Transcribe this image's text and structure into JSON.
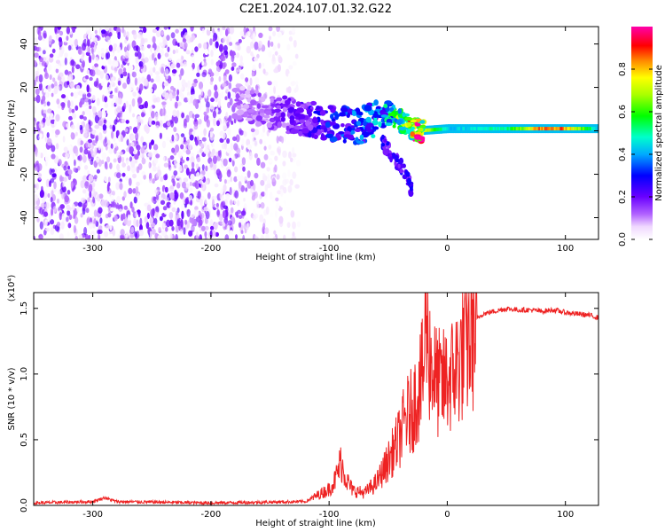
{
  "title": "C2E1.2024.107.01.32.G22",
  "chart_data": [
    {
      "type": "heatmap",
      "title": "C2E1.2024.107.01.32.G22",
      "xlabel": "Height of straight line (km)",
      "ylabel": "Frequency (Hz)",
      "xlim": [
        -350,
        128
      ],
      "ylim": [
        -50,
        48
      ],
      "x_ticks": [
        -300,
        -200,
        -100,
        0,
        100
      ],
      "y_ticks": [
        -40,
        -20,
        0,
        20,
        40
      ],
      "x_tick_labels": [
        "-300",
        "-200",
        "-100",
        "0",
        "100"
      ],
      "y_tick_labels": [
        "-40",
        "-20",
        "0",
        "20",
        "40"
      ],
      "colorbar": {
        "label": "Normalized spectral amplitude",
        "range": [
          0,
          1
        ],
        "ticks": [
          0.0,
          0.2,
          0.4,
          0.6,
          0.8
        ],
        "tick_labels": [
          "0.0",
          "0.2",
          "0.4",
          "0.6",
          "0.8"
        ],
        "colormap": "rainbow (white-purple-blue-cyan-green-yellow-red-magenta)"
      },
      "description_points": {
        "noise_region_x": [
          -350,
          -125
        ],
        "noise_region_freq": [
          -50,
          48
        ],
        "noise_amplitude": 0.15,
        "signal_track": [
          {
            "x": -175,
            "freq": 13,
            "amp": 0.12
          },
          {
            "x": -150,
            "freq": 9,
            "amp": 0.15
          },
          {
            "x": -125,
            "freq": 6,
            "amp": 0.2
          },
          {
            "x": -100,
            "freq": 4,
            "amp": 0.3
          },
          {
            "x": -75,
            "freq": 2,
            "amp": 0.35
          },
          {
            "x": -50,
            "freq": 8,
            "amp": 0.45
          },
          {
            "x": -25,
            "freq": 0,
            "amp": 0.9
          },
          {
            "x": 0,
            "freq": 1,
            "amp": 0.45
          },
          {
            "x": 50,
            "freq": 1,
            "amp": 0.55
          },
          {
            "x": 75,
            "freq": 1,
            "amp": 0.9
          },
          {
            "x": 100,
            "freq": 1,
            "amp": 0.9
          },
          {
            "x": 128,
            "freq": 1,
            "amp": 0.45
          }
        ],
        "falloff_track": [
          {
            "x": -55,
            "freq": -5
          },
          {
            "x": -45,
            "freq": -12
          },
          {
            "x": -35,
            "freq": -20
          },
          {
            "x": -30,
            "freq": -27
          }
        ]
      }
    },
    {
      "type": "line",
      "xlabel": "Height of straight line (km)",
      "ylabel": "SNR (10 * v/v)",
      "y_scale_label": "(x10⁴)",
      "xlim": [
        -350,
        128
      ],
      "ylim": [
        0,
        1.62
      ],
      "x_ticks": [
        -300,
        -200,
        -100,
        0,
        100
      ],
      "y_ticks": [
        0.0,
        0.5,
        1.0,
        1.5
      ],
      "x_tick_labels": [
        "-300",
        "-200",
        "-100",
        "0",
        "100"
      ],
      "y_tick_labels": [
        "0.0",
        "0.5",
        "1.0",
        "1.5"
      ],
      "series": [
        {
          "color": "#ee2222",
          "x": [
            -350,
            -300,
            -290,
            -280,
            -200,
            -120,
            -110,
            -100,
            -95,
            -90,
            -85,
            -80,
            -70,
            -60,
            -50,
            -45,
            -40,
            -35,
            -30,
            -25,
            -20,
            -18,
            -15,
            -10,
            -5,
            0,
            5,
            10,
            15,
            20,
            25,
            30,
            40,
            50,
            60,
            70,
            80,
            90,
            100,
            110,
            120,
            128
          ],
          "y": [
            0.02,
            0.03,
            0.06,
            0.03,
            0.02,
            0.03,
            0.08,
            0.13,
            0.2,
            0.35,
            0.2,
            0.12,
            0.1,
            0.18,
            0.35,
            0.45,
            0.55,
            0.7,
            0.75,
            0.9,
            1.05,
            1.6,
            1.2,
            1.0,
            0.95,
            1.0,
            1.05,
            1.15,
            1.25,
            1.35,
            1.42,
            1.46,
            1.48,
            1.5,
            1.49,
            1.49,
            1.48,
            1.49,
            1.47,
            1.46,
            1.45,
            1.43
          ]
        }
      ]
    }
  ]
}
